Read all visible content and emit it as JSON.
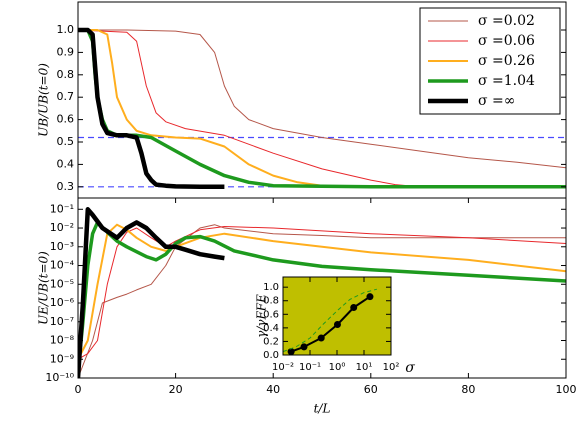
{
  "chart_data": [
    {
      "type": "line",
      "ylabel": "UB/UB(t=0)",
      "xlim": [
        0,
        100
      ],
      "ylim": [
        0.25,
        1.125
      ],
      "yticks": [
        0.3,
        0.4,
        0.5,
        0.6,
        0.7,
        0.8,
        0.9,
        {
          "value": 1,
          "label": "1.0"
        }
      ],
      "legend": "upper right",
      "hlines": [
        0.52,
        0.3
      ],
      "hline_color": "#4a4aff",
      "series": [
        {
          "name": "σ =0.02",
          "color": "#b5574a",
          "linewidth": 1,
          "x": [
            0,
            10,
            20,
            25,
            28,
            30,
            32,
            35,
            40,
            50,
            60,
            70,
            80,
            90,
            100
          ],
          "values": [
            1.0,
            1.0,
            0.995,
            0.98,
            0.9,
            0.75,
            0.66,
            0.6,
            0.56,
            0.52,
            0.49,
            0.46,
            0.43,
            0.41,
            0.385
          ]
        },
        {
          "name": "σ =0.06",
          "color": "#e8282c",
          "linewidth": 1,
          "x": [
            0,
            10,
            12,
            14,
            16,
            18,
            22,
            30,
            40,
            50,
            60,
            65,
            70,
            100
          ],
          "values": [
            1.0,
            0.99,
            0.95,
            0.75,
            0.63,
            0.59,
            0.56,
            0.53,
            0.45,
            0.38,
            0.33,
            0.31,
            0.3,
            0.3
          ]
        },
        {
          "name": "σ =0.26",
          "color": "#ffae1e",
          "linewidth": 2,
          "x": [
            0,
            4,
            6,
            7,
            8,
            10,
            12,
            15,
            20,
            25,
            30,
            35,
            40,
            45,
            50,
            55,
            60,
            100
          ],
          "values": [
            1.0,
            1.0,
            0.98,
            0.85,
            0.7,
            0.6,
            0.55,
            0.53,
            0.52,
            0.515,
            0.48,
            0.4,
            0.35,
            0.32,
            0.305,
            0.3,
            0.3,
            0.3
          ]
        },
        {
          "name": "σ =1.04",
          "color": "#1e9a1e",
          "linewidth": 3.5,
          "x": [
            0,
            2,
            3,
            3.5,
            4,
            5,
            6,
            8,
            12,
            15,
            20,
            25,
            30,
            35,
            40,
            60,
            100
          ],
          "values": [
            1.0,
            1.0,
            0.95,
            0.8,
            0.7,
            0.6,
            0.55,
            0.53,
            0.53,
            0.52,
            0.46,
            0.4,
            0.35,
            0.32,
            0.305,
            0.3,
            0.3
          ]
        },
        {
          "name": "σ =∞",
          "color": "#000000",
          "linewidth": 4.5,
          "x": [
            0,
            2,
            3,
            4,
            5,
            6,
            8,
            10,
            12,
            13,
            14,
            15,
            16,
            18,
            20,
            25,
            30
          ],
          "values": [
            1.0,
            1.0,
            0.98,
            0.7,
            0.58,
            0.54,
            0.53,
            0.53,
            0.52,
            0.45,
            0.36,
            0.33,
            0.31,
            0.305,
            0.302,
            0.3,
            0.3
          ]
        }
      ]
    },
    {
      "type": "line",
      "ylabel": "UE/UB(t=0)",
      "xlabel": "t/L",
      "xlim": [
        0,
        100
      ],
      "ylim": [
        1e-10,
        0.4
      ],
      "yscale": "log",
      "xticks": [
        0,
        20,
        40,
        60,
        80,
        100
      ],
      "yticks": [
        {
          "value": 1e-10,
          "label": "10⁻¹⁰"
        },
        {
          "value": 1e-09,
          "label": "10⁻⁹"
        },
        {
          "value": 1e-08,
          "label": "10⁻⁸"
        },
        {
          "value": 1e-07,
          "label": "10⁻⁷"
        },
        {
          "value": 1e-06,
          "label": "10⁻⁶"
        },
        {
          "value": 1e-05,
          "label": "10⁻⁵"
        },
        {
          "value": 0.0001,
          "label": "10⁻⁴"
        },
        {
          "value": 0.001,
          "label": "10⁻³"
        },
        {
          "value": 0.01,
          "label": "10⁻²"
        },
        {
          "value": 0.1,
          "label": "10⁻¹"
        }
      ],
      "series": [
        {
          "color": "#b5574a",
          "linewidth": 1,
          "x": [
            0,
            3,
            5,
            8,
            10,
            12,
            15,
            18,
            20,
            25,
            28,
            30,
            40,
            50,
            60,
            80,
            100
          ],
          "values": [
            1e-10,
            1e-08,
            1e-06,
            2e-06,
            3e-06,
            5e-06,
            1e-05,
            0.0001,
            0.001,
            0.01,
            0.015,
            0.01,
            0.005,
            0.004,
            0.003,
            0.003,
            0.003
          ]
        },
        {
          "color": "#e8282c",
          "linewidth": 1,
          "x": [
            0,
            2,
            4,
            6,
            8,
            10,
            12,
            15,
            18,
            20,
            25,
            30,
            40,
            50,
            60,
            80,
            100
          ],
          "values": [
            1e-09,
            2e-09,
            1e-08,
            1e-05,
            0.001,
            0.006,
            0.01,
            0.003,
            0.001,
            0.002,
            0.008,
            0.012,
            0.01,
            0.007,
            0.005,
            0.003,
            0.0015
          ]
        },
        {
          "color": "#ffae1e",
          "linewidth": 2,
          "x": [
            0,
            2,
            4,
            6,
            8,
            10,
            12,
            15,
            18,
            20,
            25,
            30,
            40,
            50,
            60,
            80,
            100
          ],
          "values": [
            1e-09,
            1e-08,
            1e-05,
            0.005,
            0.015,
            0.008,
            0.003,
            0.001,
            0.0006,
            0.001,
            0.003,
            0.005,
            0.002,
            0.001,
            0.0005,
            0.0002,
            5e-05
          ]
        },
        {
          "color": "#1e9a1e",
          "linewidth": 3.5,
          "x": [
            0,
            1,
            2,
            3,
            4,
            6,
            8,
            10,
            14,
            16,
            18,
            20,
            22,
            25,
            28,
            32,
            40,
            50,
            60,
            80,
            100
          ],
          "values": [
            2e-10,
            1e-07,
            0.0001,
            0.005,
            0.02,
            0.006,
            0.002,
            0.001,
            0.0003,
            0.0002,
            0.0004,
            0.0015,
            0.003,
            0.0035,
            0.002,
            0.0006,
            0.0002,
            9e-05,
            6e-05,
            3e-05,
            1.5e-05
          ]
        },
        {
          "color": "#000000",
          "linewidth": 4.5,
          "x": [
            0,
            1,
            2,
            3,
            5,
            8,
            10,
            12,
            14,
            16,
            18,
            20,
            22,
            25,
            28,
            30
          ],
          "values": [
            1e-10,
            1e-06,
            0.1,
            0.05,
            0.01,
            0.003,
            0.01,
            0.02,
            0.01,
            0.003,
            0.001,
            0.001,
            0.0007,
            0.0004,
            0.0003,
            0.00025
          ]
        }
      ]
    },
    {
      "type": "line",
      "ylabel": "γ/γFFE",
      "xlabel": "σ",
      "xscale": "log",
      "background": "#bfbf00",
      "xlim": [
        0.01,
        100
      ],
      "ylim": [
        0,
        1.15
      ],
      "xticks": [
        {
          "value": 0.01,
          "label": "10⁻²"
        },
        {
          "value": 0.1,
          "label": "10⁻¹"
        },
        {
          "value": 1,
          "label": "10⁰"
        },
        {
          "value": 10,
          "label": "10¹"
        },
        {
          "value": 100,
          "label": "10²"
        }
      ],
      "yticks": [
        {
          "value": 0,
          "label": "0.0"
        },
        0.2,
        0.4,
        0.6,
        0.8,
        {
          "value": 1,
          "label": "1.0"
        }
      ],
      "series": [
        {
          "color": "#000000",
          "linewidth": 2,
          "marker": true,
          "x": [
            0.02,
            0.06,
            0.26,
            1.04,
            4.16,
            16.6
          ],
          "values": [
            0.05,
            0.12,
            0.25,
            0.45,
            0.7,
            0.86
          ]
        },
        {
          "color": "#1e9a1e",
          "linewidth": 1,
          "dashed": true,
          "x": [
            0.01,
            0.03,
            0.1,
            0.3,
            1,
            3,
            10,
            30
          ],
          "values": [
            0.05,
            0.12,
            0.25,
            0.45,
            0.65,
            0.82,
            0.92,
            0.97
          ]
        }
      ]
    }
  ]
}
